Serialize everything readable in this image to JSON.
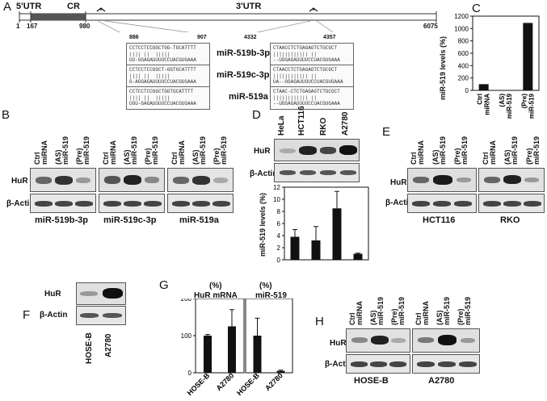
{
  "panel_A": {
    "label": "A",
    "utr5": "5'UTR",
    "cr": "CR",
    "utr3": "3'UTR",
    "pos_start": "1",
    "pos_167": "167",
    "pos_980": "980",
    "pos_6075": "6075",
    "pos_886": "886",
    "pos_907": "907",
    "pos_4332": "4332",
    "pos_4357": "4357",
    "mirnas": [
      "miR-519b-3p",
      "miR-519c-3p",
      "miR-519a"
    ],
    "seq_top_left": [
      "CCTCCTCCGGCTGG-TGCATTTT",
      "CCTCCTCCGGCT-GGTGCATTTT",
      "CCTCCTCCGGCTGGTGCATTTT"
    ],
    "seq_bot_left": [
      "UU-GGAGAUUUUCCUACGUGAAA",
      "G-AGGAGAUUUUCCUACGUGAAA",
      "UGU-GAGAUUUUCCUACGUGAAA"
    ],
    "seq_top_right": [
      "CTAACCTCTGAGAGTCTGCGCT",
      "CTAACCTCTGAGAGTCTGCGCT",
      "CTAAC-CTCTGAGAGTCTGCGCT"
    ],
    "seq_bot_right": [
      "--UGGAGAUUUUCCUACGUGAAA",
      "UA--GGAGAUUUUCCUACGUGAAA",
      "--UGGAGAUUUUCCUACGUGAAA"
    ],
    "bars_left": "|||| ||  |||||",
    "bars_right": "|||||||||||| ||"
  },
  "panel_B": {
    "label": "B",
    "lanes": [
      "Ctrl miRNA",
      "(AS) miR-519",
      "(Pre) miR-519"
    ],
    "row_labels": [
      "HuR",
      "β-Actin"
    ],
    "groups": [
      "miR-519b-3p",
      "miR-519c-3p",
      "miR-519a"
    ]
  },
  "panel_C": {
    "label": "C",
    "chart_data": {
      "type": "bar",
      "categories": [
        "Ctrl miRNA",
        "(AS) miR-519",
        "(Pre) miR-519"
      ],
      "values": [
        100,
        5,
        1090
      ],
      "ylabel": "miR-519 levels (%)",
      "ylim": [
        0,
        1200
      ],
      "yticks": [
        "0",
        "200",
        "400",
        "600",
        "800",
        "1000",
        "1200"
      ]
    }
  },
  "panel_D": {
    "label": "D",
    "cells": [
      "HeLa",
      "HCT116",
      "RKO",
      "A2780"
    ],
    "row_labels": [
      "HuR",
      "β-Actin"
    ],
    "chart_data": {
      "type": "bar",
      "categories": [
        "HeLa",
        "HCT116",
        "RKO",
        "A2780"
      ],
      "values": [
        3.8,
        3.2,
        8.5,
        1.0
      ],
      "errors": [
        1.2,
        2.3,
        2.8,
        0.1
      ],
      "ylabel": "miR-519 levels (%)",
      "ylim": [
        0,
        12
      ],
      "yticks": [
        "0",
        "2",
        "4",
        "6",
        "8",
        "10",
        "12"
      ]
    }
  },
  "panel_E": {
    "label": "E",
    "lanes": [
      "Ctrl miRNA",
      "(AS) miR-519",
      "(Pre) miR-519"
    ],
    "row_labels": [
      "HuR",
      "β-Actin"
    ],
    "groups": [
      "HCT116",
      "RKO"
    ]
  },
  "panel_F": {
    "label": "F",
    "row_labels": [
      "HuR",
      "β-Actin"
    ],
    "cells": [
      "HOSE-B",
      "A2780"
    ]
  },
  "panel_G": {
    "label": "G",
    "chart_data": [
      {
        "type": "bar",
        "title": "(%)\nHuR mRNA",
        "categories": [
          "HOSE-B",
          "A2780"
        ],
        "values": [
          100,
          125
        ],
        "errors": [
          3,
          45
        ],
        "ylim": [
          0,
          200
        ],
        "yticks": [
          "0",
          "100",
          "200"
        ]
      },
      {
        "type": "bar",
        "title": "(%)\nmiR-519",
        "categories": [
          "HOSE-B",
          "A2780"
        ],
        "values": [
          100,
          5
        ],
        "errors": [
          47,
          2
        ],
        "ylim": [
          0,
          200
        ]
      }
    ],
    "title1_a": "(%)",
    "title1_b": "HuR mRNA",
    "title2_a": "(%)",
    "title2_b": "miR-519"
  },
  "panel_H": {
    "label": "H",
    "lanes": [
      "Ctrl miRNA",
      "(AS) miR-519",
      "(Pre) miR-519"
    ],
    "row_labels": [
      "HuR",
      "β-Actin"
    ],
    "groups": [
      "HOSE-B",
      "A2780"
    ]
  }
}
